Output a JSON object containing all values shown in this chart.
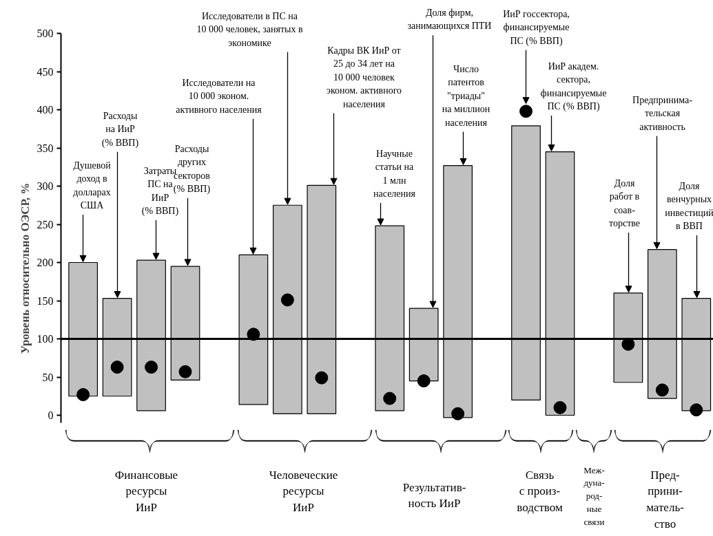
{
  "chart_data": {
    "type": "bar",
    "ylabel": "Уровень относительно ОЭСР, %",
    "categories": [
      null,
      null,
      null,
      null,
      null,
      null,
      null,
      null,
      null,
      null,
      null,
      null,
      null,
      null,
      null,
      null,
      null,
      null,
      null
    ],
    "series": [
      {
        "color": "#c0c0c0",
        "base": [
          25,
          25,
          6,
          46,
          null,
          14,
          2,
          2,
          null,
          6,
          45,
          -3,
          null,
          20,
          0,
          null,
          43,
          22,
          6
        ],
        "values": [
          175,
          128,
          197,
          149,
          null,
          196,
          273,
          299,
          null,
          242,
          95,
          330,
          null,
          359,
          345,
          null,
          117,
          195,
          147
        ]
      },
      {
        "type": "scatter",
        "color": "#000000",
        "values": [
          27,
          63,
          63,
          57,
          null,
          106,
          151,
          49,
          null,
          22,
          45,
          2,
          null,
          398,
          10,
          null,
          93,
          33,
          7
        ]
      }
    ],
    "marker": "circle",
    "ylim": [
      -10,
      500
    ],
    "yticks": [
      0,
      50,
      100,
      150,
      200,
      250,
      300,
      350,
      400,
      450,
      500
    ],
    "ref_lines": [
      {
        "axis": "y",
        "value": 100,
        "color": "#000000"
      }
    ],
    "annotations": [
      "Душевой\nдоход в\nдолларах\nСША",
      "Расходы\nна ИиР\n(% ВВП)",
      "Затраты\nПС на\nИиР\n(% ВВП)",
      "Расходы\nдругих\nсекторов\n(% ВВП)",
      "Исследователи на\n10 000 эконом.\nактивного населения",
      "Исследователи в ПС на\n10 000 человек, занятых в\nэкономике",
      "Кадры ВК ИиР от\n25 до 34 лет на\n10 000 человек\nэконом. активного\nнаселения",
      "Научные\nстатьи на\n1 млн\nнаселения",
      "Доля фирм,\nзанимающихся ПТИ",
      "Число\nпатентов\n\"триады\"\nна миллион\nнаселения",
      "ИиР госсектора,\nфинансируемые\nПС (% ВВП)",
      "ИиР академ.\nсектора,\nфинансируемые\nПС (% ВВП)",
      "Доля\nработ в\nсоав-\nторстве",
      "Предпринима-\nтельская\nактивность",
      "Доля\nвенчурных\nинвестиций\nв ВВП",
      "Финансовые\nресурсы\nИиР",
      "Человеческие\nресурсы\nИиР",
      "Результатив-\nность ИиР",
      "Связь\nс произ-\nводством",
      "Меж-\nдуна-\nрод-\nные\nсвязи",
      "Пред-\nприни-\nматель-\nство"
    ],
    "grid": false
  }
}
